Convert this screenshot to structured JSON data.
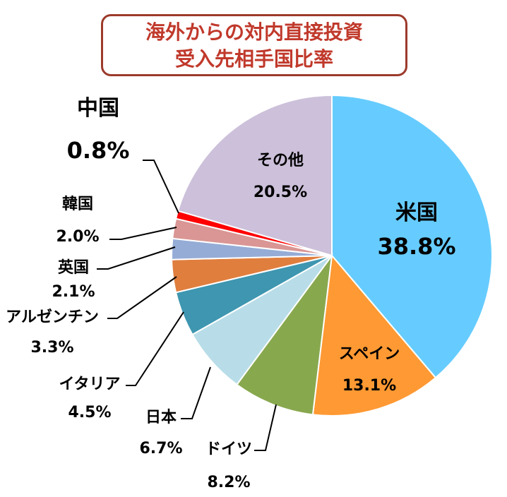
{
  "chart_data": {
    "type": "pie",
    "title_lines": [
      "海外からの対内直接投資",
      "受入先相手国比率"
    ],
    "slices": [
      {
        "name": "米国",
        "value_label": "38.8%",
        "value": 38.8,
        "color": "#66ccff"
      },
      {
        "name": "スペイン",
        "value_label": "13.1%",
        "value": 13.1,
        "color": "#ff9933"
      },
      {
        "name": "ドイツ",
        "value_label": "8.2%",
        "value": 8.2,
        "color": "#88a84e"
      },
      {
        "name": "日本",
        "value_label": "6.7%",
        "value": 6.7,
        "color": "#b8dde8"
      },
      {
        "name": "イタリア",
        "value_label": "4.5%",
        "value": 4.5,
        "color": "#3e96b0"
      },
      {
        "name": "アルゼンチン",
        "value_label": "3.3%",
        "value": 3.3,
        "color": "#e07e3e"
      },
      {
        "name": "英国",
        "value_label": "2.1%",
        "value": 2.1,
        "color": "#95acd6"
      },
      {
        "name": "韓国",
        "value_label": "2.0%",
        "value": 2.0,
        "color": "#d99694"
      },
      {
        "name": "中国",
        "value_label": "0.8%",
        "value": 0.8,
        "color": "#ff0000"
      },
      {
        "name": "その他",
        "value_label": "20.5%",
        "value": 20.5,
        "color": "#ccc0da"
      }
    ]
  }
}
